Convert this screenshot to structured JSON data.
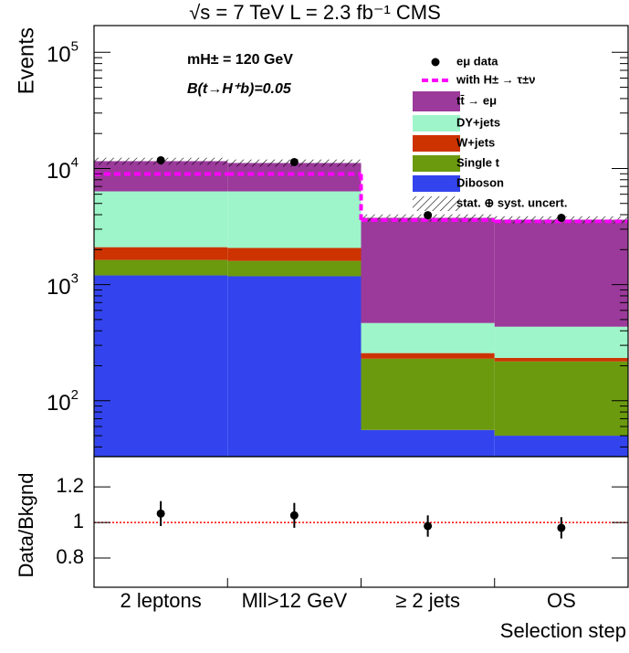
{
  "chart_data": [
    {
      "type": "bar",
      "stacked": true,
      "log_scale": true,
      "title": "√s = 7 TeV   L = 2.3 fb⁻¹  CMS",
      "annotations": [
        "mH± = 120 GeV",
        "B(t→H⁺b)=0.05"
      ],
      "ylabel": "Events",
      "categories": [
        "2 leptons",
        "Mll>12 GeV",
        "≥ 2 jets",
        "OS"
      ],
      "series": [
        {
          "name": "tt̄ → eμ",
          "color": "#9b3a9b",
          "values": [
            5210,
            4800,
            3293,
            3186
          ]
        },
        {
          "name": "DY+jets",
          "color": "#9ef5c9",
          "values": [
            4250,
            4280,
            210,
            200
          ]
        },
        {
          "name": "W+jets",
          "color": "#cc3300",
          "values": [
            470,
            470,
            27,
            16
          ]
        },
        {
          "name": "Single t",
          "color": "#6b9a0f",
          "values": [
            430,
            420,
            174,
            168
          ]
        },
        {
          "name": "Diboson",
          "color": "#3344ee",
          "values": [
            1200,
            1180,
            56,
            50
          ]
        }
      ],
      "data": {
        "name": "eμ data",
        "color": "#000000",
        "values": [
          11770,
          11350,
          3960,
          3760
        ]
      },
      "signal": {
        "name": "with H± → τ±ν",
        "color": "#ff00ff",
        "values": [
          8970,
          8970,
          3600,
          3500
        ]
      },
      "uncertainty": {
        "name": "stat. ⊕ syst. uncert."
      },
      "ylim": [
        33,
        170000
      ],
      "yticks": [
        {
          "value": 100,
          "label": "10",
          "power": "2"
        },
        {
          "value": 1000,
          "label": "10",
          "power": "3"
        },
        {
          "value": 10000,
          "label": "10",
          "power": "4"
        },
        {
          "value": 100000,
          "label": "10",
          "power": "5"
        }
      ]
    },
    {
      "type": "scatter",
      "ylabel": "Data/Bkgnd",
      "xlabel": "Selection step",
      "values": [
        1.05,
        1.04,
        0.98,
        0.97
      ],
      "errors": [
        0.07,
        0.07,
        0.06,
        0.06
      ],
      "color": "#000000",
      "reference": 1,
      "reference_color": "#ff0000",
      "ylim": [
        0.636,
        1.37
      ],
      "yticks": [
        0.8,
        1,
        1.2
      ]
    }
  ]
}
